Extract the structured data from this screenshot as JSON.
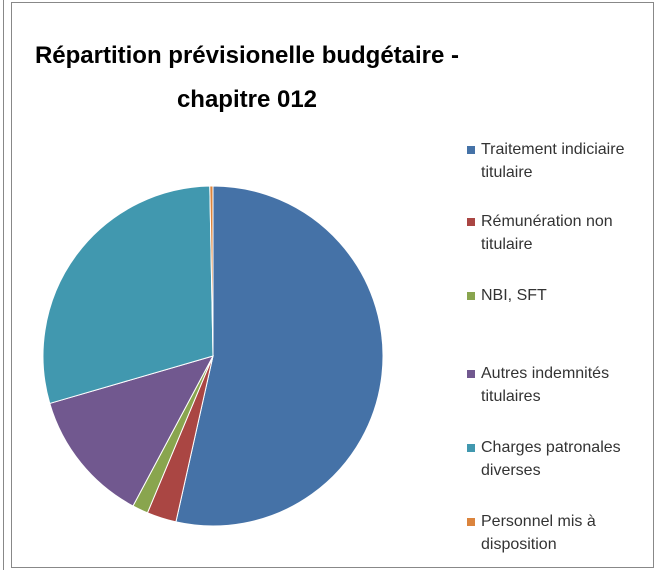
{
  "chart_data": {
    "type": "pie",
    "title": "Répartition prévisionelle budgétaire - chapitre 012",
    "categories": [
      "Traitement indiciaire titulaire",
      "Rémunération non titulaire",
      "NBI, SFT",
      "Autres indemnités titulaires",
      "Charges patronales diverses",
      "Personnel mis à disposition"
    ],
    "values": [
      53.5,
      2.8,
      1.5,
      12.7,
      29.2,
      0.3
    ],
    "colors": [
      "#4572A7",
      "#AA4643",
      "#89A54E",
      "#71588F",
      "#4198AF",
      "#DB843D"
    ],
    "legend": "right"
  }
}
